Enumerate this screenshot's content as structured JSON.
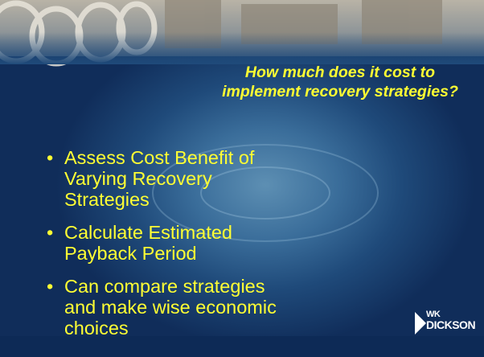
{
  "slide": {
    "title": "How much does it cost to implement recovery strategies?",
    "bullets": [
      "Assess Cost Benefit of Varying Recovery Strategies",
      "Calculate Estimated Payback Period",
      "Can compare strategies and make wise economic choices"
    ],
    "logo": {
      "top": "WK",
      "bottom": "DICKSON"
    }
  }
}
